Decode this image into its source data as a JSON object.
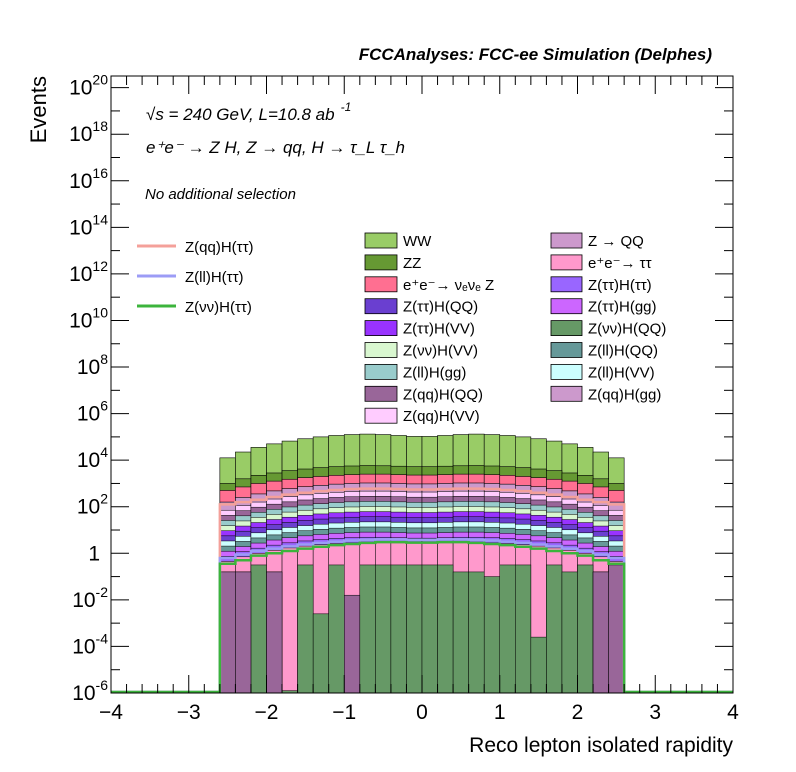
{
  "chart_data": {
    "type": "area",
    "header": "FCCAnalyses: FCC-ee Simulation (Delphes)",
    "ylabel": "Events",
    "xlabel": "Reco lepton isolated rapidity",
    "annotations": {
      "line1": "√s = 240 GeV, L=10.8 ab",
      "line1_sup": "-1",
      "line2": "e⁺e⁻ → Z H, Z → qq, H → τ_L τ_h",
      "line3": "No additional selection"
    },
    "xlim": [
      -4,
      4
    ],
    "ylim_log10": [
      -6,
      20.5
    ],
    "yscale": "log",
    "x_ticks": [
      "−4",
      "−3",
      "−2",
      "−1",
      "0",
      "1",
      "2",
      "3",
      "4"
    ],
    "y_ticks": [
      {
        "base": "10",
        "exp": "20",
        "v": 20
      },
      {
        "base": "10",
        "exp": "18",
        "v": 18
      },
      {
        "base": "10",
        "exp": "16",
        "v": 16
      },
      {
        "base": "10",
        "exp": "14",
        "v": 14
      },
      {
        "base": "10",
        "exp": "12",
        "v": 12
      },
      {
        "base": "10",
        "exp": "10",
        "v": 10
      },
      {
        "base": "10",
        "exp": "8",
        "v": 8
      },
      {
        "base": "10",
        "exp": "6",
        "v": 6
      },
      {
        "base": "10",
        "exp": "4",
        "v": 4
      },
      {
        "base": "10",
        "exp": "2",
        "v": 2
      },
      {
        "base": "1",
        "exp": "",
        "v": 0
      },
      {
        "base": "10",
        "exp": "-2",
        "v": -2
      },
      {
        "base": "10",
        "exp": "-4",
        "v": -4
      },
      {
        "base": "10",
        "exp": "-6",
        "v": -6
      }
    ],
    "bin_edges": [
      -2.6,
      -2.4,
      -2.2,
      -2.0,
      -1.8,
      -1.6,
      -1.4,
      -1.2,
      -1.0,
      -0.8,
      -0.6,
      -0.4,
      -0.2,
      0.0,
      0.2,
      0.4,
      0.6,
      0.8,
      1.0,
      1.2,
      1.4,
      1.6,
      1.8,
      2.0,
      2.2,
      2.4,
      2.6
    ],
    "stack_log10_top": {
      "WW": [
        4.1,
        4.35,
        4.55,
        4.7,
        4.82,
        4.92,
        5.0,
        5.06,
        5.1,
        5.12,
        5.1,
        5.06,
        5.02,
        5.02,
        5.06,
        5.1,
        5.12,
        5.1,
        5.06,
        5.0,
        4.92,
        4.82,
        4.7,
        4.55,
        4.35,
        4.1
      ],
      "ZZ": [
        3.0,
        3.2,
        3.35,
        3.45,
        3.55,
        3.62,
        3.68,
        3.72,
        3.75,
        3.77,
        3.76,
        3.74,
        3.72,
        3.72,
        3.74,
        3.76,
        3.77,
        3.75,
        3.72,
        3.68,
        3.62,
        3.55,
        3.45,
        3.35,
        3.2,
        3.0
      ],
      "nunuZ": [
        2.7,
        2.85,
        3.0,
        3.1,
        3.18,
        3.25,
        3.3,
        3.35,
        3.38,
        3.4,
        3.4,
        3.38,
        3.36,
        3.36,
        3.38,
        3.4,
        3.4,
        3.38,
        3.35,
        3.3,
        3.25,
        3.18,
        3.1,
        3.0,
        2.85,
        2.7
      ],
      "mid": [
        2.2,
        2.4,
        2.55,
        2.68,
        2.78,
        2.86,
        2.92,
        2.97,
        3.0,
        3.02,
        3.02,
        3.0,
        2.98,
        2.98,
        3.0,
        3.02,
        3.02,
        3.0,
        2.97,
        2.92,
        2.86,
        2.78,
        2.68,
        2.55,
        2.4,
        2.2
      ]
    },
    "lines": [
      {
        "name": "Z(qq)H(ττ)",
        "color": "#f4a09a",
        "log10": [
          2.1,
          2.2,
          2.3,
          2.42,
          2.52,
          2.6,
          2.67,
          2.72,
          2.76,
          2.78,
          2.78,
          2.76,
          2.74,
          2.74,
          2.76,
          2.78,
          2.78,
          2.76,
          2.72,
          2.67,
          2.6,
          2.52,
          2.42,
          2.3,
          2.2,
          2.1
        ]
      },
      {
        "name": "Z(ll)H(ττ)",
        "color": "#9c9cf6",
        "log10": [
          -0.2,
          -0.05,
          0.1,
          0.2,
          0.3,
          0.38,
          0.45,
          0.5,
          0.55,
          0.58,
          0.6,
          0.6,
          0.58,
          0.58,
          0.6,
          0.6,
          0.58,
          0.55,
          0.5,
          0.45,
          0.38,
          0.3,
          0.2,
          0.1,
          -0.05,
          -0.2
        ]
      },
      {
        "name": "Z(νν)H(ττ)",
        "color": "#3cb43c",
        "log10": [
          -0.45,
          -0.3,
          -0.1,
          0.0,
          0.1,
          0.2,
          0.28,
          0.35,
          0.4,
          0.45,
          0.48,
          0.48,
          0.46,
          0.46,
          0.48,
          0.48,
          0.45,
          0.4,
          0.35,
          0.28,
          0.2,
          0.1,
          0.0,
          -0.1,
          -0.3,
          -0.45
        ]
      }
    ],
    "legend_lines": [
      {
        "name": "Z(qq)H(ττ)",
        "color": "#f4a09a"
      },
      {
        "name": "Z(ll)H(ττ)",
        "color": "#9c9cf6"
      },
      {
        "name": "Z(νν)H(ττ)",
        "color": "#3cb43c"
      }
    ],
    "legend_stack_col1": [
      {
        "name": "WW",
        "color": "#99cc66"
      },
      {
        "name": "ZZ",
        "color": "#669933"
      },
      {
        "name": "e⁺e⁻→ νₑνₑ Z",
        "color": "#ff6f91"
      },
      {
        "name": "Z(ττ)H(QQ)",
        "color": "#6a3fd0"
      },
      {
        "name": "Z(ττ)H(VV)",
        "color": "#9933ff"
      },
      {
        "name": "Z(νν)H(VV)",
        "color": "#d9f7d0"
      },
      {
        "name": "Z(ll)H(gg)",
        "color": "#99cccc"
      },
      {
        "name": "Z(qq)H(QQ)",
        "color": "#996699"
      },
      {
        "name": "Z(qq)H(VV)",
        "color": "#ffccff"
      }
    ],
    "legend_stack_col2": [
      {
        "name": "Z → QQ",
        "color": "#cc99cc"
      },
      {
        "name": "e⁺e⁻→ ττ",
        "color": "#ff99cc"
      },
      {
        "name": "Z(ττ)H(ττ)",
        "color": "#9966ff"
      },
      {
        "name": "Z(ττ)H(gg)",
        "color": "#cc66ff"
      },
      {
        "name": "Z(νν)H(QQ)",
        "color": "#669966"
      },
      {
        "name": "Z(ll)H(QQ)",
        "color": "#669999"
      },
      {
        "name": "Z(ll)H(VV)",
        "color": "#ccffff"
      },
      {
        "name": "Z(qq)H(gg)",
        "color": "#cc99cc"
      }
    ],
    "green_bins_log10_top": [
      -0.8,
      -0.8,
      -0.5,
      -0.8,
      -5.9,
      -0.5,
      -2.6,
      -0.5,
      -2.2,
      -0.5,
      -0.5,
      -0.5,
      -0.5,
      -0.5,
      -0.5,
      -0.8,
      -0.8,
      -1.0,
      -0.5,
      -0.5,
      -3.6,
      -0.5,
      -0.8,
      -0.5,
      -0.8,
      -0.5
    ],
    "purple_bins_log10_top": [
      -0.8,
      -0.8,
      -6,
      -0.8,
      -6,
      -6,
      -6,
      -6,
      -1.8,
      -6,
      -6,
      -6,
      -6,
      -6,
      -6,
      -6,
      -6,
      -6,
      -6,
      -6,
      -6,
      -6,
      -6,
      -6,
      -0.8,
      -0.5
    ]
  }
}
